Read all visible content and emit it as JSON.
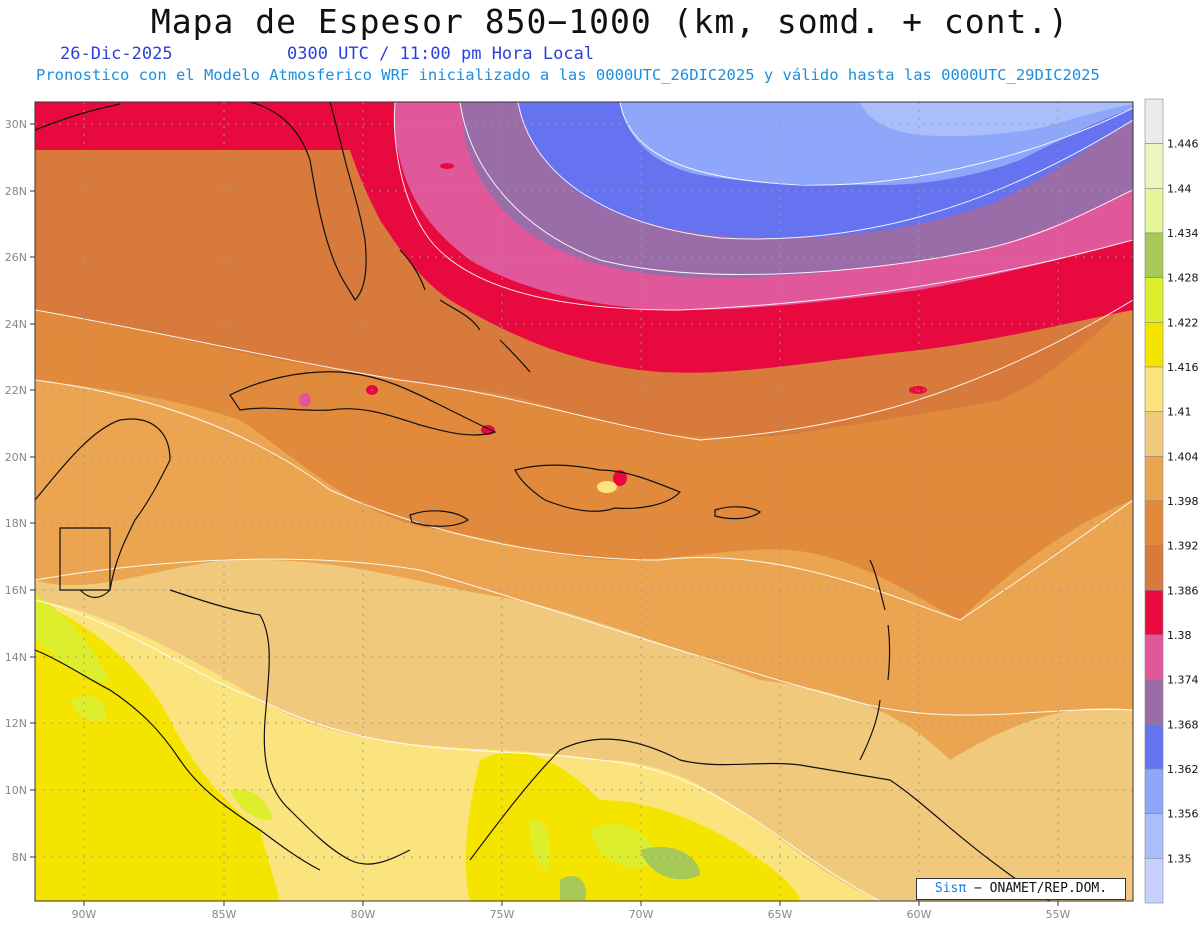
{
  "title": "Mapa de Espesor 850−1000 (km, somd. + cont.)",
  "date": "26-Dic-2025",
  "time": "0300 UTC / 11:00 pm Hora Local",
  "subtitle": "Pronostico con el Modelo Atmosferico WRF inicializado a las 0000UTC_26DIC2025 y válido hasta las  0000UTC_29DIC2025",
  "lat_labels": [
    "30N",
    "28N",
    "26N",
    "24N",
    "22N",
    "20N",
    "18N",
    "16N",
    "14N",
    "12N",
    "10N",
    "8N"
  ],
  "lon_labels": [
    "90W",
    "85W",
    "80W",
    "75W",
    "70W",
    "65W",
    "60W",
    "55W"
  ],
  "colorbar": {
    "labels": [
      "1.446",
      "1.44",
      "1.434",
      "1.428",
      "1.422",
      "1.416",
      "1.41",
      "1.404",
      "1.398",
      "1.392",
      "1.386",
      "1.38",
      "1.374",
      "1.368",
      "1.362",
      "1.356",
      "1.35"
    ],
    "colors_top_to_bottom": [
      "#ebebeb",
      "#eef5c0",
      "#e4f59a",
      "#a7c957",
      "#ddee2c",
      "#f5e400",
      "#fbe47d",
      "#f0c97c",
      "#eba551",
      "#e18a3c",
      "#d87a3c",
      "#e8093e",
      "#e0579a",
      "#9a6da8",
      "#6673f0",
      "#8ea7fb",
      "#aabefb",
      "#c6d2fd"
    ]
  },
  "credit": {
    "brand": "Sisπ",
    "text": "− ONAMET/REP.DOM."
  }
}
